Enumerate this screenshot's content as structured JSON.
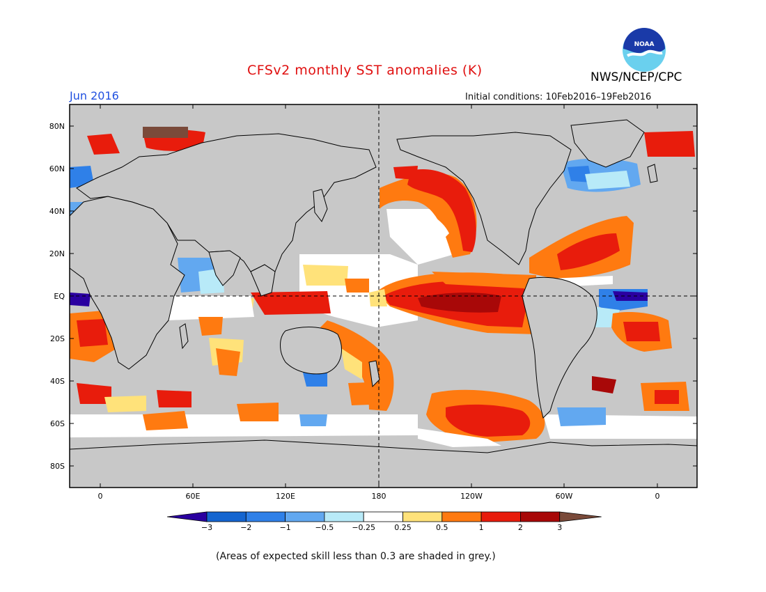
{
  "header": {
    "title": "CFSv2 monthly SST anomalies (K)",
    "month": "Jun 2016",
    "initial_conditions": "Initial conditions: 10Feb2016–19Feb2016",
    "organization": "NWS/NCEP/CPC",
    "logo_text": "NOAA"
  },
  "map": {
    "lat_labels": [
      "80N",
      "60N",
      "40N",
      "20N",
      "EQ",
      "20S",
      "40S",
      "60S",
      "80S"
    ],
    "lon_labels": [
      "0",
      "60E",
      "120E",
      "180",
      "120W",
      "60W",
      "0"
    ],
    "colors": {
      "mask_grey": "#c8c8c8",
      "land_grey": "#c8c8c8",
      "coast": "#000000"
    }
  },
  "colorbar": {
    "tick_labels": [
      "−3",
      "−2",
      "−1",
      "−0.5",
      "−0.25",
      "0.25",
      "0.5",
      "1",
      "2",
      "3"
    ],
    "colors": [
      "#2a00a0",
      "#1565d0",
      "#2f80e8",
      "#62a8f0",
      "#b8eaf8",
      "#ffffff",
      "#ffe27a",
      "#ff7a10",
      "#e81c0c",
      "#a80808",
      "#7a4a3a"
    ]
  },
  "footer": {
    "skill_note": "(Areas of expected skill less than 0.3 are shaded in grey.)"
  }
}
